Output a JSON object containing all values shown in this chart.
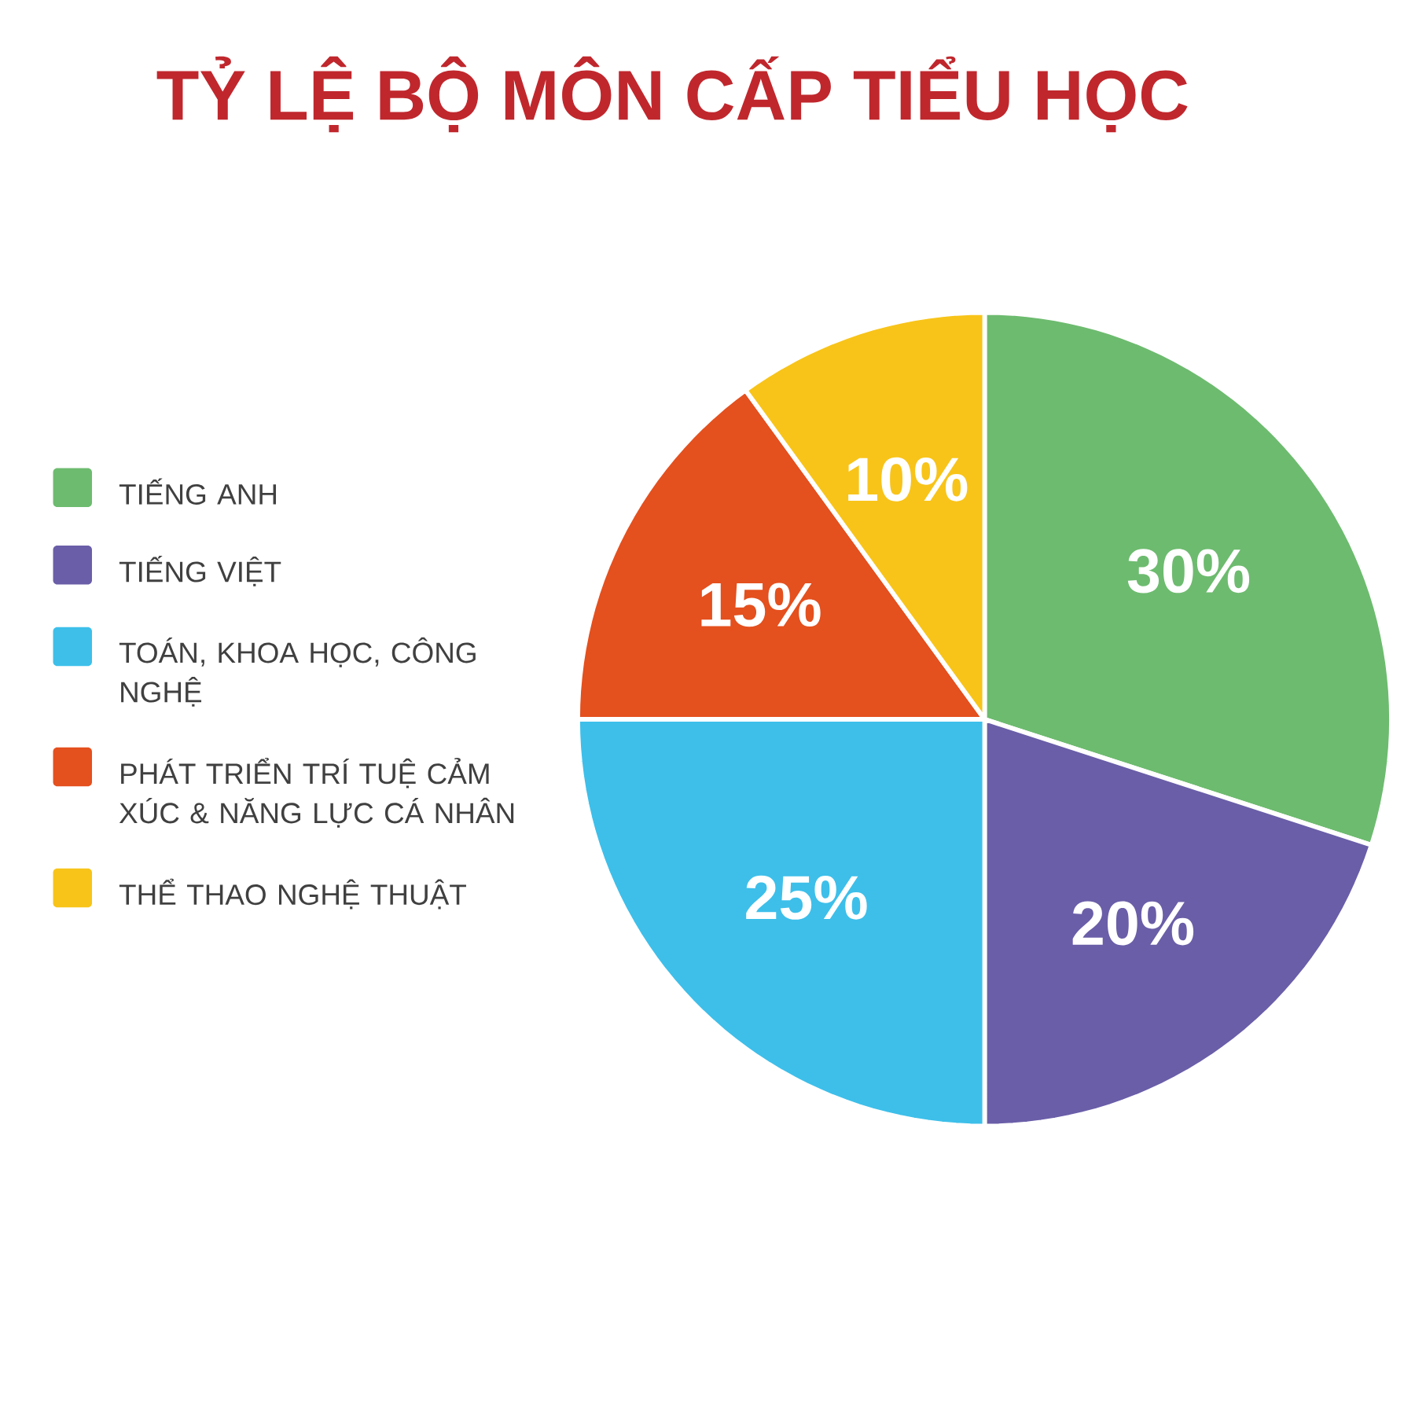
{
  "chart_data": {
    "type": "pie",
    "title": "TỶ LỆ BỘ MÔN CẤP TIỂU HỌC",
    "categories": [
      "TIẾNG ANH",
      "TIẾNG VIỆT",
      "TOÁN, KHOA HỌC, CÔNG NGHỆ",
      "PHÁT TRIỂN TRÍ TUỆ CẢM XÚC & NĂNG LỰC CÁ NHÂN",
      "THỂ THAO NGHỆ THUẬT"
    ],
    "values": [
      30,
      20,
      25,
      15,
      10
    ],
    "colors": [
      "#6dbb6f",
      "#6a5ea8",
      "#3dbfea",
      "#e4501e",
      "#f8c419"
    ],
    "value_labels": [
      "30%",
      "20%",
      "25%",
      "15%",
      "10%"
    ],
    "legend": "left"
  }
}
